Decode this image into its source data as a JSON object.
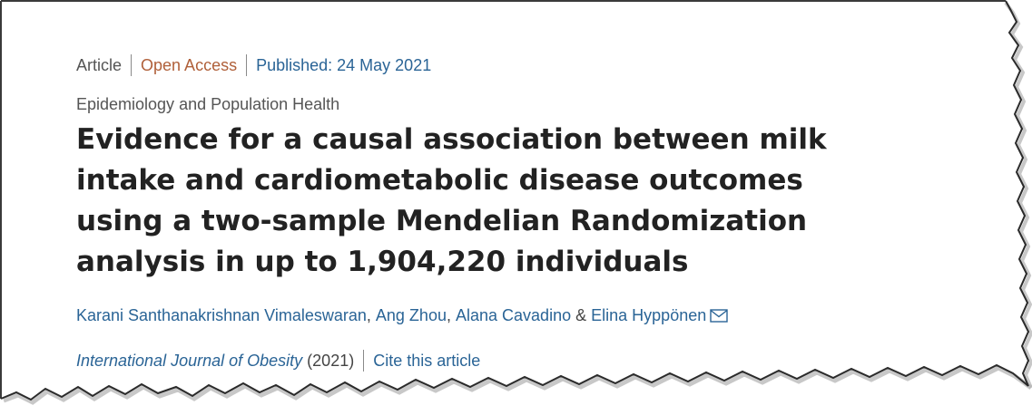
{
  "meta": {
    "type": "Article",
    "access": "Open Access",
    "published": "Published: 24 May 2021"
  },
  "subject": "Epidemiology and Population Health",
  "title": "Evidence for a causal association between milk intake and cardiometabolic disease outcomes using a two-sample Mendelian Randomization analysis in up to 1,904,220 individuals",
  "authors": {
    "a1": "Karani Santhanakrishnan Vimaleswaran",
    "a2": "Ang Zhou",
    "a3": "Alana Cavadino",
    "a4": "Elina Hyppönen",
    "comma": ",",
    "amp": "&",
    "mail_icon": "envelope-icon"
  },
  "citation": {
    "journal": "International Journal of Obesity",
    "year": "(2021)",
    "cite": "Cite this article"
  },
  "colors": {
    "link": "#2a6496",
    "open_access": "#b0603a",
    "title": "#222222",
    "meta": "#555555"
  }
}
